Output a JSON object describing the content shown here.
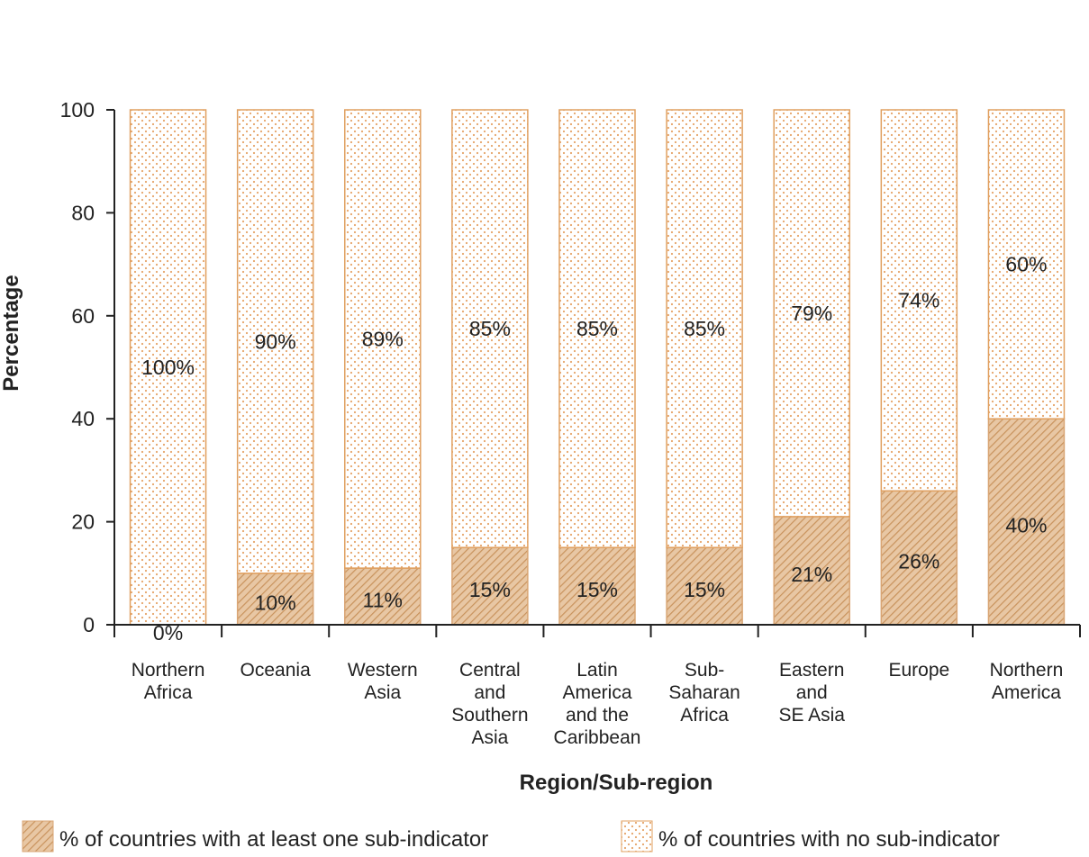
{
  "colors": {
    "at_least_one": "#d9a574",
    "no_indicator": "#e0a060",
    "axis": "#222222"
  },
  "chart_data": {
    "type": "bar",
    "stacked": true,
    "xlabel": "Region/Sub-region",
    "ylabel": "Percentage",
    "ylim": [
      0,
      100
    ],
    "yticks": [
      0,
      20,
      40,
      60,
      80,
      100
    ],
    "categories": [
      [
        "Northern",
        "Africa"
      ],
      [
        "Oceania"
      ],
      [
        "Western",
        "Asia"
      ],
      [
        "Central",
        "and",
        "Southern",
        "Asia"
      ],
      [
        "Latin",
        "America",
        "and the",
        "Caribbean"
      ],
      [
        "Sub-",
        "Saharan",
        "Africa"
      ],
      [
        "Eastern",
        "and",
        "SE Asia"
      ],
      [
        "Europe"
      ],
      [
        "Northern",
        "America"
      ]
    ],
    "series": [
      {
        "name": "% of countries with at least one sub-indicator",
        "values": [
          0,
          10,
          11,
          15,
          15,
          15,
          21,
          26,
          40
        ],
        "labels": [
          "0%",
          "10%",
          "11%",
          "15%",
          "15%",
          "15%",
          "21%",
          "26%",
          "40%"
        ]
      },
      {
        "name": "% of countries with no sub-indicator",
        "values": [
          100,
          90,
          89,
          85,
          85,
          85,
          79,
          74,
          60
        ],
        "labels": [
          "100%",
          "90%",
          "89%",
          "85%",
          "85%",
          "85%",
          "79%",
          "74%",
          "60%"
        ]
      }
    ],
    "legend_position": "bottom",
    "grid": false
  }
}
